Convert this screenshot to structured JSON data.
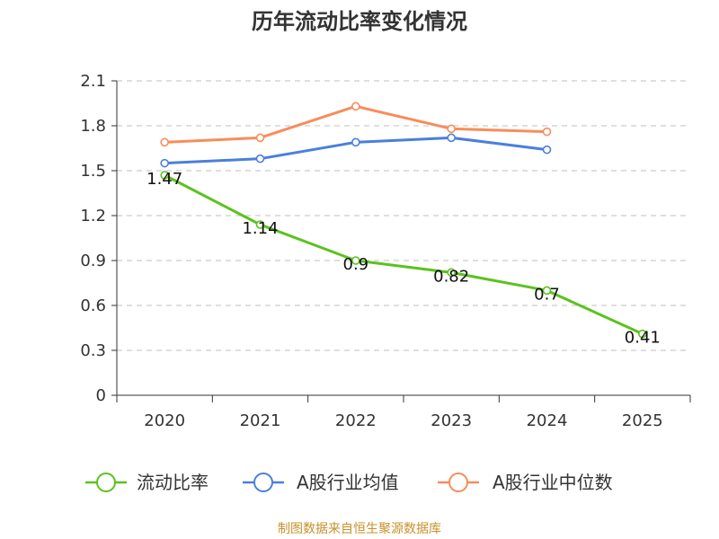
{
  "chart_data": {
    "type": "line",
    "title": "历年流动比率变化情况",
    "categories": [
      "2020",
      "2021",
      "2022",
      "2023",
      "2024",
      "2025"
    ],
    "y_ticks": [
      "0",
      "0.3",
      "0.6",
      "0.9",
      "1.2",
      "1.5",
      "1.8",
      "2.1"
    ],
    "ylim": [
      0,
      2.1
    ],
    "grid": true,
    "legend_position": "bottom",
    "series": [
      {
        "name": "流动比率",
        "color": "#5bc21e",
        "values": [
          1.47,
          1.14,
          0.9,
          0.82,
          0.7,
          0.41
        ],
        "labels": [
          "1.47",
          "1.14",
          "0.9",
          "0.82",
          "0.7",
          "0.41"
        ]
      },
      {
        "name": "A股行业均值",
        "color": "#4a7fdc",
        "values": [
          1.55,
          1.58,
          1.69,
          1.72,
          1.64,
          null
        ]
      },
      {
        "name": "A股行业中位数",
        "color": "#f98c5a",
        "values": [
          1.69,
          1.72,
          1.93,
          1.78,
          1.76,
          null
        ]
      }
    ]
  },
  "source": "制图数据来自恒生聚源数据库"
}
